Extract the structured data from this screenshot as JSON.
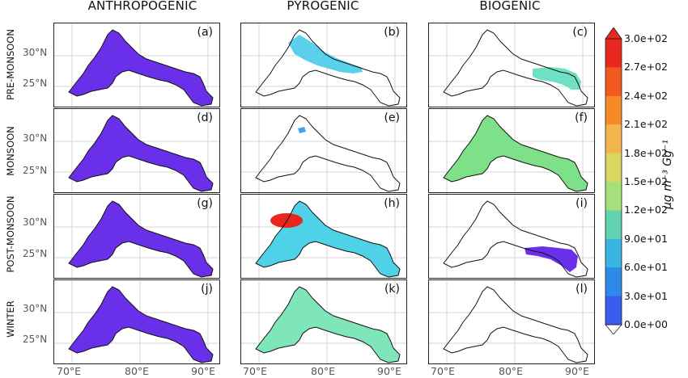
{
  "columns": [
    "ANTHROPOGENIC",
    "PYROGENIC",
    "BIOGENIC"
  ],
  "rows": [
    "PRE-MONSOON",
    "MONSOON",
    "POST-MONSOON",
    "WINTER"
  ],
  "lat_ticks": [
    "30°N",
    "25°N"
  ],
  "lon_ticks": [
    "70°E",
    "80°E",
    "90°E"
  ],
  "panels": [
    {
      "label": "(a)",
      "fill": "#6a2fe8"
    },
    {
      "label": "(b)",
      "fill": "#5ad0ea"
    },
    {
      "label": "(c)",
      "fill": "#6ee0c4"
    },
    {
      "label": "(d)",
      "fill": "#6a2fe8"
    },
    {
      "label": "(e)",
      "fill": "#4aa0ee"
    },
    {
      "label": "(f)",
      "fill": "#7fe08a"
    },
    {
      "label": "(g)",
      "fill": "#6a2fe8"
    },
    {
      "label": "(h)",
      "fill": "#4fd2e8"
    },
    {
      "label": "(i)",
      "fill": "#6a2fe8"
    },
    {
      "label": "(j)",
      "fill": "#6a2fe8"
    },
    {
      "label": "(k)",
      "fill": "#7ee6b8"
    },
    {
      "label": "(l)",
      "fill": "none"
    }
  ],
  "colorbar": {
    "unit": "μg m⁻³ Gg⁻¹",
    "ticks": [
      "3.0e+02",
      "2.7e+02",
      "2.4e+02",
      "2.1e+02",
      "1.8e+02",
      "1.5e+02",
      "1.2e+02",
      "9.0e+01",
      "6.0e+01",
      "3.0e+01",
      "0.0e+00"
    ],
    "colors": [
      "#e8281e",
      "#f05a1e",
      "#f58a2a",
      "#f3b450",
      "#d8d860",
      "#a6e07a",
      "#62d2b0",
      "#3ab4e0",
      "#2e8ae8",
      "#3a5cee",
      "#6a2fe8"
    ]
  }
}
